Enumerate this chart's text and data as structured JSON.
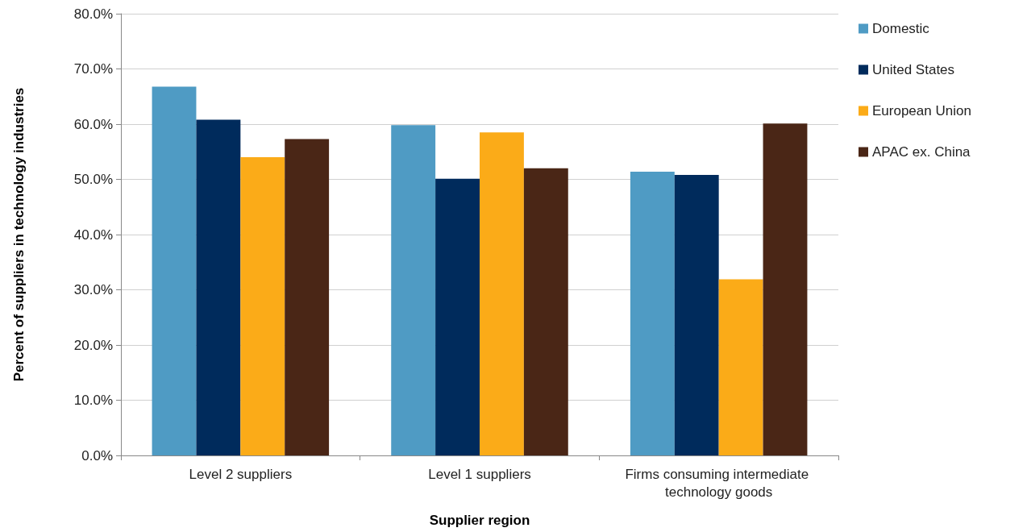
{
  "chart_data": {
    "type": "bar",
    "xlabel": "Supplier region",
    "ylabel": "Percent of suppliers in technology industries",
    "categories": [
      "Level 2 suppliers",
      "Level 1 suppliers",
      "Firms consuming intermediate technology goods"
    ],
    "series": [
      {
        "name": "Domestic",
        "color": "#4f9bc4",
        "values": [
          66.8,
          59.8,
          51.4
        ]
      },
      {
        "name": "United States",
        "color": "#002b5c",
        "values": [
          60.8,
          50.1,
          50.8
        ]
      },
      {
        "name": "European Union",
        "color": "#fbab18",
        "values": [
          54.0,
          58.5,
          31.9
        ]
      },
      {
        "name": "APAC ex. China",
        "color": "#4a2616",
        "values": [
          57.3,
          52.0,
          60.1
        ]
      }
    ],
    "ylim": [
      0,
      80
    ],
    "yticks": [
      {
        "value": 0,
        "label": "0.0%"
      },
      {
        "value": 10,
        "label": "10.0%"
      },
      {
        "value": 20,
        "label": "20.0%"
      },
      {
        "value": 30,
        "label": "30.0%"
      },
      {
        "value": 40,
        "label": "40.0%"
      },
      {
        "value": 50,
        "label": "50.0%"
      },
      {
        "value": 60,
        "label": "60.0%"
      },
      {
        "value": 70,
        "label": "70.0%"
      },
      {
        "value": 80,
        "label": "80.0%"
      }
    ],
    "grid": "y",
    "legend": "right"
  }
}
